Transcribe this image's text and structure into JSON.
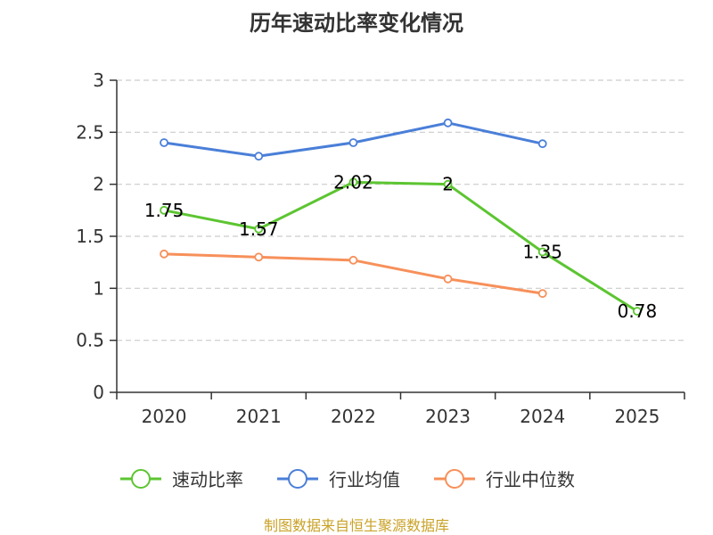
{
  "chart_data": {
    "type": "line",
    "title": "历年速动比率变化情况",
    "categories": [
      "2020",
      "2021",
      "2022",
      "2023",
      "2024",
      "2025"
    ],
    "ylim": [
      0,
      3
    ],
    "yticks": [
      0,
      0.5,
      1,
      1.5,
      2,
      2.5,
      3
    ],
    "ytick_labels": [
      "0",
      "0.5",
      "1",
      "1.5",
      "2",
      "2.5",
      "3"
    ],
    "grid": true,
    "legend_position": "bottom",
    "series": [
      {
        "name": "速动比率",
        "color": "#5cc531",
        "values": [
          1.75,
          1.57,
          2.02,
          2.0,
          1.35,
          0.78
        ],
        "labels": [
          "1.75",
          "1.57",
          "2.02",
          "2",
          "1.35",
          "0.78"
        ],
        "show_labels": true
      },
      {
        "name": "行业均值",
        "color": "#4a7fd8",
        "values": [
          2.4,
          2.27,
          2.4,
          2.59,
          2.39,
          null
        ],
        "show_labels": false
      },
      {
        "name": "行业中位数",
        "color": "#f7905a",
        "values": [
          1.33,
          1.3,
          1.27,
          1.09,
          0.95,
          null
        ],
        "show_labels": false
      }
    ],
    "source": "制图数据来自恒生聚源数据库",
    "source_color": "#c9a227"
  }
}
